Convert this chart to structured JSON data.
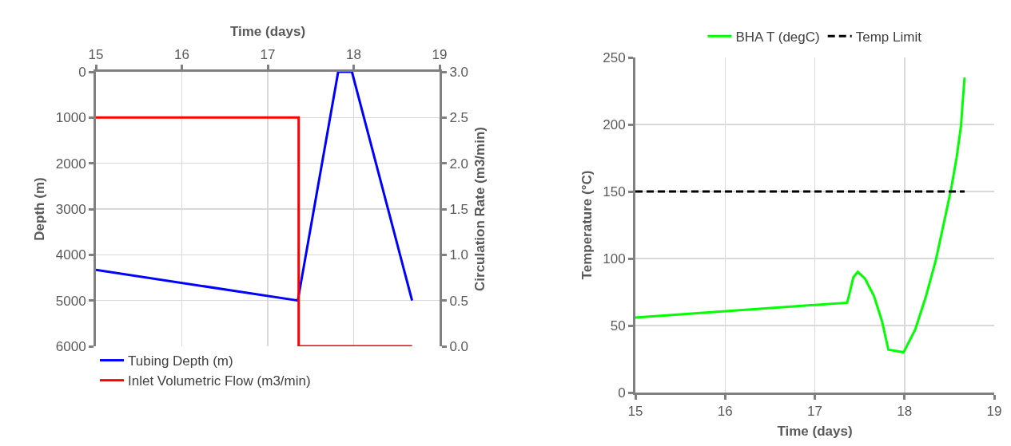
{
  "chart_data": [
    {
      "type": "line",
      "xlabel": "Time (days)",
      "ylabel": "Depth (m)",
      "y2label": "Circulation Rate (m3/min)",
      "xlim": [
        15,
        19
      ],
      "xticks": [
        15,
        16,
        17,
        18,
        19
      ],
      "ylim": [
        6000,
        0
      ],
      "yticks": [
        0,
        1000,
        2000,
        3000,
        4000,
        5000,
        6000
      ],
      "y2lim": [
        0,
        3
      ],
      "y2ticks": [
        {
          "value": 0,
          "label": "0.0"
        },
        {
          "value": 0.5,
          "label": "0.5"
        },
        {
          "value": 1,
          "label": "1.0"
        },
        {
          "value": 1.5,
          "label": "1.5"
        },
        {
          "value": 2,
          "label": "2.0"
        },
        {
          "value": 2.5,
          "label": "2.5"
        },
        {
          "value": 3,
          "label": "3.0"
        }
      ],
      "grid": true,
      "legend": "bottom",
      "marker": "none",
      "line_style": "solid",
      "series": [
        {
          "name": "Tubing Depth (m)",
          "color": "#0000ff",
          "x": [
            15,
            17.35,
            17.82,
            17.98,
            18.68
          ],
          "values": [
            4330,
            5000,
            0,
            0,
            5000
          ]
        },
        {
          "name": "Inlet Volumetric Flow (m3/min)",
          "color": "#ff0000",
          "axis": "y2",
          "x": [
            15,
            17.36,
            17.36,
            18.68
          ],
          "values": [
            2.5,
            2.5,
            0,
            0
          ]
        }
      ]
    },
    {
      "type": "line",
      "xlabel": "Time (days)",
      "ylabel": "Temperature (°C)",
      "xlim": [
        15,
        19
      ],
      "xticks": [
        15,
        16,
        17,
        18,
        19
      ],
      "ylim": [
        0,
        250
      ],
      "yticks": [
        0,
        50,
        100,
        150,
        200,
        250
      ],
      "grid": true,
      "legend": "top",
      "marker": "none",
      "series": [
        {
          "name": "BHA T (degC)",
          "color": "#00ff00",
          "line_style": "solid",
          "x": [
            15,
            17.36,
            17.38,
            17.43,
            17.48,
            17.56,
            17.66,
            17.75,
            17.82,
            17.99,
            18.12,
            18.24,
            18.35,
            18.45,
            18.52,
            18.58,
            18.63,
            18.65,
            18.67
          ],
          "values": [
            56,
            67,
            72,
            86,
            90,
            85,
            72,
            53,
            32,
            30,
            47,
            72,
            99,
            130,
            152,
            175,
            199,
            218,
            235
          ]
        },
        {
          "name": "Temp Limit",
          "color": "#000000",
          "line_style": "dashed",
          "x": [
            15,
            18.67
          ],
          "values": [
            150,
            150
          ]
        }
      ]
    }
  ]
}
